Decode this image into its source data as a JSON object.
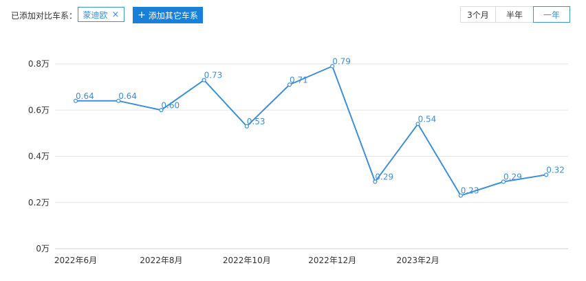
{
  "toolbar": {
    "compare_label": "已添加对比车系：",
    "tag": {
      "label": "蒙迪欧",
      "remove": "×"
    },
    "add_button": {
      "icon": "+",
      "label": "添加其它车系"
    },
    "range_options": [
      "3个月",
      "半年",
      "一年"
    ],
    "selected_range": "一年"
  },
  "colors": {
    "accent": "#3d8fd6",
    "button": "#1a7fd8"
  },
  "chart_data": {
    "type": "line",
    "x": [
      "2022-06",
      "2022-07",
      "2022-08",
      "2022-09",
      "2022-10",
      "2022-11",
      "2022-12",
      "2023-01",
      "2023-02",
      "2023-03",
      "2023-04",
      "2023-05"
    ],
    "x_tick_labels": [
      "2022年6月",
      "2022年8月",
      "2022年10月",
      "2022年12月",
      "2023年2月"
    ],
    "values": [
      0.64,
      0.64,
      0.6,
      0.73,
      0.53,
      0.71,
      0.79,
      0.29,
      0.54,
      0.23,
      0.29,
      0.32
    ],
    "value_labels": [
      "0.64",
      "0.64",
      "0.60",
      "0.73",
      "0.53",
      "0.71",
      "0.79",
      "0.29",
      "0.54",
      "0.23",
      "0.29",
      "0.32"
    ],
    "y_tick_labels": [
      "0万",
      "0.2万",
      "0.4万",
      "0.6万",
      "0.8万"
    ],
    "y_ticks": [
      0,
      0.2,
      0.4,
      0.6,
      0.8
    ],
    "ylim": [
      0,
      0.8
    ],
    "grid": true
  }
}
